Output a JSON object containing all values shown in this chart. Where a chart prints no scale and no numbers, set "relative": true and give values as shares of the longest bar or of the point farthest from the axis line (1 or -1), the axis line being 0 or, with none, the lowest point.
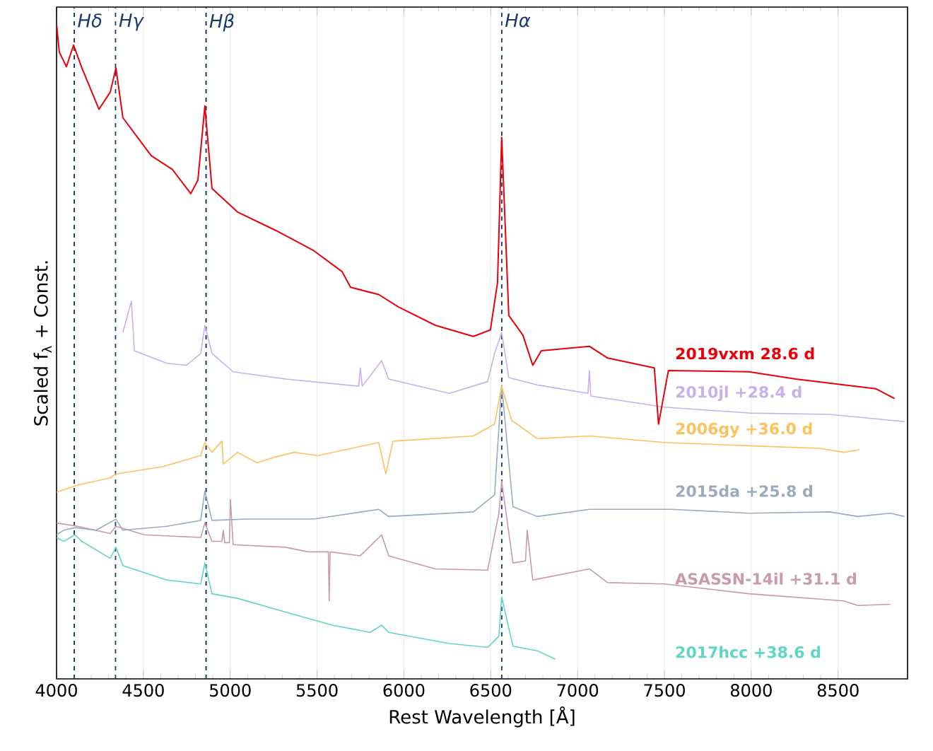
{
  "chart_data": {
    "type": "line",
    "xlabel": "Rest Wavelength [Å]",
    "ylabel": "Scaled f$_{λ}$ + Const.",
    "relative": true,
    "grid": "x",
    "xlim": [
      4000,
      8900
    ],
    "xticks": [
      4000,
      4500,
      5000,
      5500,
      6000,
      6500,
      7000,
      7500,
      8000,
      8500
    ],
    "ref_lines": [
      {
        "axis": "x",
        "value": 4102,
        "label": "Hδ",
        "color": "#1b3b6f",
        "line_style": "dashed"
      },
      {
        "axis": "x",
        "value": 4340,
        "label": "Hγ",
        "color": "#1b3b6f",
        "line_style": "dashed"
      },
      {
        "axis": "x",
        "value": 4861,
        "label": "Hβ",
        "color": "#1b3b6f",
        "line_style": "dashed"
      },
      {
        "axis": "x",
        "value": 6563,
        "label": "Hα",
        "color": "#1b3b6f",
        "line_style": "dashed"
      }
    ],
    "series": [
      {
        "name": "2019vxm 28.6 d",
        "color": "#e8000b",
        "x": [
          4000,
          4016,
          4057,
          4098,
          4146,
          4244,
          4309,
          4342,
          4382,
          4545,
          4667,
          4773,
          4814,
          4854,
          4895,
          5042,
          5261,
          5481,
          5644,
          5693,
          5855,
          5969,
          6181,
          6400,
          6498,
          6539,
          6563,
          6604,
          6685,
          6742,
          6791,
          7068,
          7173,
          7442,
          7466,
          7523,
          7987,
          8256,
          8532,
          8719,
          8825
        ],
        "values": [
          1.0,
          0.957,
          0.935,
          0.968,
          0.933,
          0.87,
          0.896,
          0.933,
          0.857,
          0.799,
          0.778,
          0.741,
          0.762,
          0.875,
          0.749,
          0.713,
          0.685,
          0.654,
          0.622,
          0.598,
          0.587,
          0.568,
          0.54,
          0.523,
          0.533,
          0.605,
          0.827,
          0.555,
          0.525,
          0.479,
          0.501,
          0.508,
          0.49,
          0.475,
          0.389,
          0.471,
          0.469,
          0.458,
          0.449,
          0.443,
          0.428
        ]
      },
      {
        "name": "2010jl +28.4 d",
        "color": "#c8b0ea",
        "x": [
          4382,
          4431,
          4448,
          4635,
          4749,
          4830,
          4854,
          4895,
          5017,
          5318,
          5740,
          5749,
          5760,
          5872,
          5912,
          6262,
          6482,
          6522,
          6563,
          6604,
          6767,
          7060,
          7068,
          7076,
          7499,
          7987,
          8451,
          8801,
          8882
        ],
        "values": [
          0.529,
          0.577,
          0.501,
          0.482,
          0.479,
          0.497,
          0.54,
          0.497,
          0.469,
          0.458,
          0.447,
          0.475,
          0.447,
          0.486,
          0.458,
          0.436,
          0.454,
          0.497,
          0.529,
          0.46,
          0.449,
          0.436,
          0.471,
          0.432,
          0.415,
          0.406,
          0.404,
          0.395,
          0.393
        ]
      },
      {
        "name": "2006gy +36.0 d",
        "color": "#fcc25e",
        "x": [
          4000,
          4122,
          4309,
          4342,
          4610,
          4830,
          4854,
          4895,
          4952,
          4960,
          5042,
          5155,
          5261,
          5367,
          5505,
          5855,
          5896,
          5937,
          6400,
          6522,
          6563,
          6620,
          6767,
          7068,
          7499,
          7987,
          8394,
          8532,
          8622
        ],
        "values": [
          0.285,
          0.296,
          0.307,
          0.313,
          0.324,
          0.341,
          0.361,
          0.346,
          0.363,
          0.328,
          0.346,
          0.33,
          0.339,
          0.346,
          0.341,
          0.361,
          0.313,
          0.363,
          0.371,
          0.389,
          0.447,
          0.395,
          0.367,
          0.371,
          0.361,
          0.356,
          0.352,
          0.346,
          0.35
        ]
      },
      {
        "name": "2015da +25.8 d",
        "color": "#9aabbf",
        "x": [
          4000,
          4041,
          4106,
          4228,
          4342,
          4382,
          4635,
          4830,
          4854,
          4895,
          5098,
          5481,
          5855,
          5912,
          6400,
          6522,
          6563,
          6628,
          6767,
          7068,
          7540,
          7987,
          8451,
          8614,
          8801,
          8882
        ],
        "values": [
          0.22,
          0.227,
          0.231,
          0.227,
          0.244,
          0.227,
          0.233,
          0.242,
          0.287,
          0.242,
          0.244,
          0.244,
          0.259,
          0.248,
          0.255,
          0.281,
          0.449,
          0.263,
          0.248,
          0.259,
          0.259,
          0.253,
          0.255,
          0.248,
          0.253,
          0.248
        ]
      },
      {
        "name": "ASASSN-14il +31.1 d",
        "color": "#c99aa8",
        "x": [
          4000,
          4122,
          4309,
          4342,
          4505,
          4830,
          4854,
          4895,
          4952,
          4960,
          4968,
          4995,
          5001,
          5017,
          5318,
          5448,
          5565,
          5570,
          5575,
          5749,
          5872,
          5912,
          6181,
          6482,
          6547,
          6563,
          6628,
          6700,
          6710,
          6742,
          7068,
          7173,
          7499,
          7987,
          8532,
          8614,
          8801
        ],
        "values": [
          0.238,
          0.233,
          0.222,
          0.233,
          0.22,
          0.216,
          0.238,
          0.21,
          0.21,
          0.227,
          0.208,
          0.208,
          0.274,
          0.205,
          0.201,
          0.194,
          0.194,
          0.119,
          0.194,
          0.188,
          0.22,
          0.188,
          0.168,
          0.166,
          0.253,
          0.302,
          0.177,
          0.18,
          0.227,
          0.151,
          0.168,
          0.147,
          0.145,
          0.13,
          0.119,
          0.112,
          0.114
        ]
      },
      {
        "name": "2017hcc +38.6 d",
        "color": "#5ed6c6",
        "x": [
          4000,
          4041,
          4106,
          4146,
          4309,
          4342,
          4382,
          4635,
          4830,
          4854,
          4895,
          5042,
          5318,
          5587,
          5806,
          5872,
          5912,
          6262,
          6482,
          6547,
          6563,
          6628,
          6767,
          6872
        ],
        "values": [
          0.216,
          0.21,
          0.22,
          0.21,
          0.184,
          0.201,
          0.173,
          0.151,
          0.145,
          0.177,
          0.13,
          0.123,
          0.102,
          0.082,
          0.071,
          0.082,
          0.071,
          0.054,
          0.048,
          0.065,
          0.125,
          0.05,
          0.043,
          0.03
        ]
      }
    ]
  }
}
